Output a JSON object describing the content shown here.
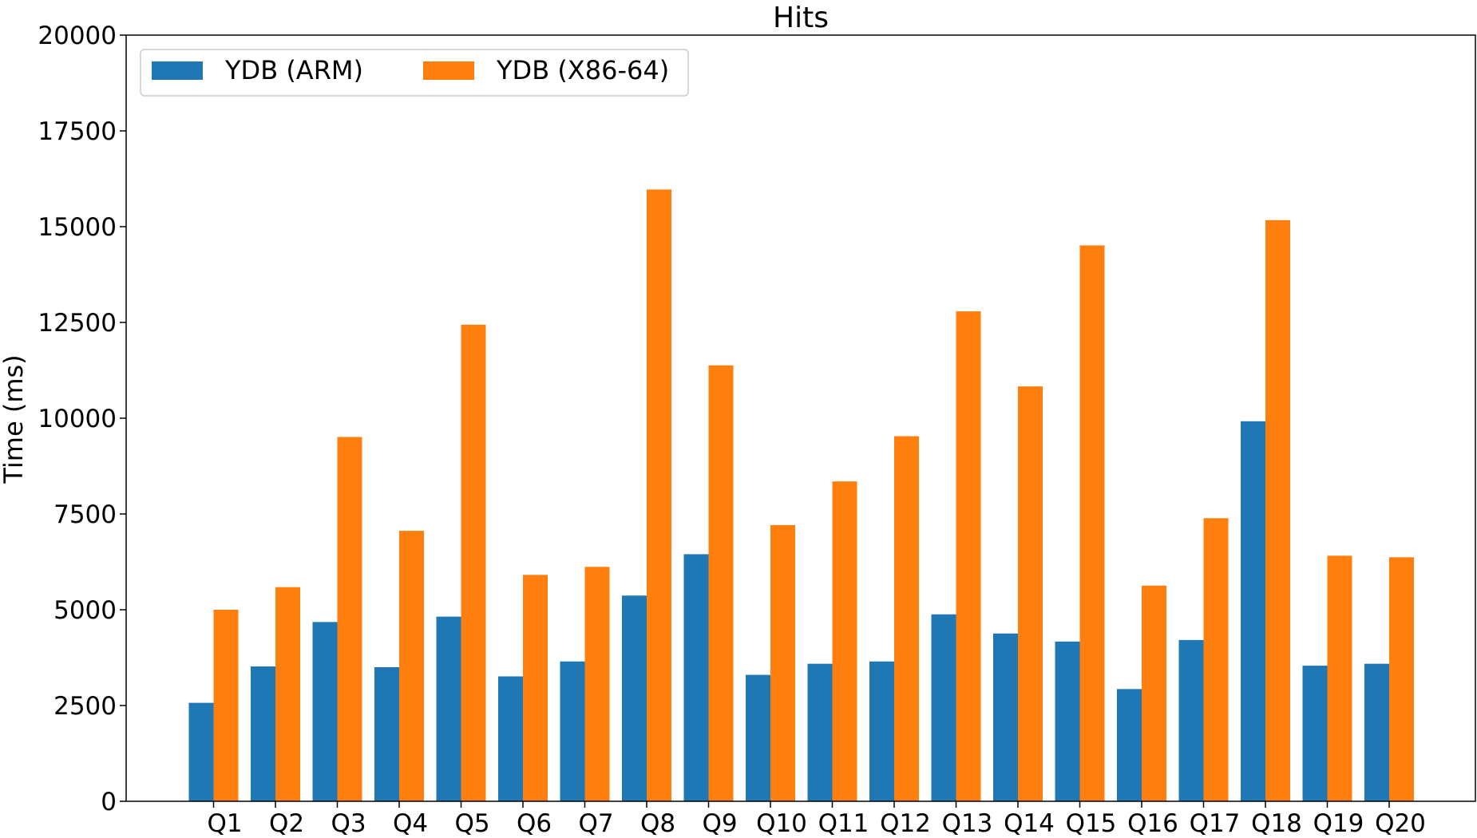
{
  "chart_data": {
    "type": "bar",
    "title": "Hits",
    "xlabel": "",
    "ylabel": "Time (ms)",
    "ylim": [
      0,
      20000
    ],
    "yticks": [
      0,
      2500,
      5000,
      7500,
      10000,
      12500,
      15000,
      17500,
      20000
    ],
    "categories": [
      "Q1",
      "Q2",
      "Q3",
      "Q4",
      "Q5",
      "Q6",
      "Q7",
      "Q8",
      "Q9",
      "Q10",
      "Q11",
      "Q12",
      "Q13",
      "Q14",
      "Q15",
      "Q16",
      "Q17",
      "Q18",
      "Q19",
      "Q20"
    ],
    "series": [
      {
        "name": "YDB (ARM)",
        "color": "#1f77b4",
        "values": [
          2570,
          3520,
          4680,
          3500,
          4820,
          3260,
          3650,
          5370,
          6450,
          3300,
          3590,
          3650,
          4880,
          4380,
          4170,
          2930,
          4210,
          9920,
          3540,
          3590
        ]
      },
      {
        "name": "YDB (X86-64)",
        "color": "#ff7f0e",
        "values": [
          5000,
          5590,
          9510,
          7060,
          12440,
          5910,
          6120,
          15970,
          11380,
          7210,
          8350,
          9530,
          12790,
          10830,
          14510,
          5630,
          7390,
          15170,
          6410,
          6370
        ]
      }
    ],
    "grid": false,
    "legend_position": "top-left",
    "legend_columns": 2
  }
}
